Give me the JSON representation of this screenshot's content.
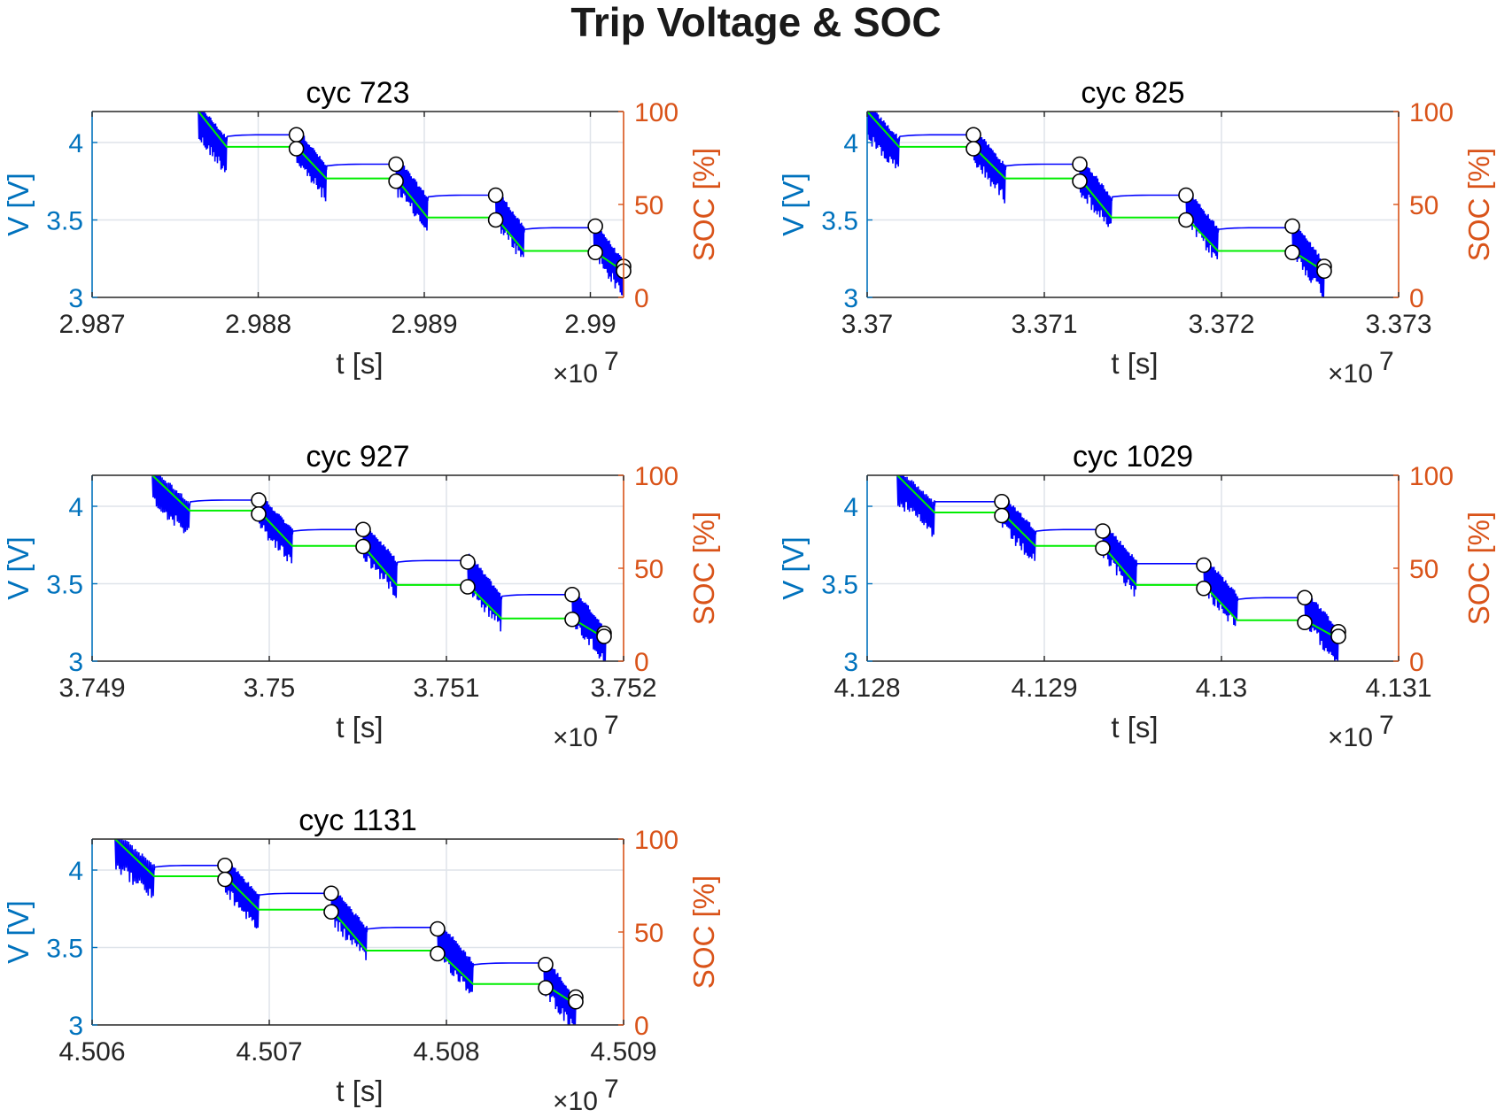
{
  "figure": {
    "title": "Trip Voltage & SOC"
  },
  "colors": {
    "voltage_axis": "#0072BD",
    "soc_axis": "#D95319",
    "voltage_trace": "#0000ff",
    "soc_trace": "#00ee00",
    "grid": "#dfe4ea",
    "marker_fill": "#ffffff",
    "marker_edge": "#000000"
  },
  "chart_data": [
    {
      "type": "line",
      "title": "cyc 723",
      "xlabel": "t [s]",
      "x_exponent": "×10",
      "x_exponent_power": "7",
      "ylabel_left": "V  [V]",
      "ylabel_right": "SOC  [%]",
      "xlim": [
        2.987,
        2.9902
      ],
      "ylim_left": [
        3,
        4.2
      ],
      "ylim_right": [
        0,
        100
      ],
      "xticks": [
        2.987,
        2.988,
        2.989,
        2.99
      ],
      "xtick_labels": [
        "2.987",
        "2.988",
        "2.989",
        "2.99"
      ],
      "yticks_left": [
        3,
        3.5,
        4
      ],
      "ytick_labels_left": [
        "3",
        "3.5",
        "4"
      ],
      "yticks_right": [
        0,
        50,
        100
      ],
      "ytick_labels_right": [
        "0",
        "50",
        "100"
      ],
      "grid": true,
      "series": [
        {
          "axis": "left",
          "x": [
            2.98764,
            2.98781,
            2.98782,
            2.98823,
            2.98841,
            2.98842,
            2.98883,
            2.98902,
            2.98903,
            2.98943,
            2.9896,
            2.98961,
            2.99002,
            2.9902
          ],
          "y": [
            4.2,
            3.98,
            4.04,
            4.05,
            3.8,
            3.85,
            3.86,
            3.6,
            3.65,
            3.66,
            3.4,
            3.44,
            3.45,
            3.18
          ]
        },
        {
          "axis": "right",
          "x": [
            2.98764,
            2.98781,
            2.98823,
            2.98841,
            2.98883,
            2.98902,
            2.98943,
            2.9896,
            2.99002,
            2.9902
          ],
          "y": [
            100,
            81,
            81,
            64,
            64,
            43,
            43,
            25,
            25,
            14
          ]
        }
      ],
      "markers": {
        "x": [
          2.98823,
          2.98823,
          2.98883,
          2.98883,
          2.98943,
          2.98943,
          2.99003,
          2.99003,
          2.9902,
          2.9902
        ],
        "v": [
          4.05,
          3.96,
          3.86,
          3.75,
          3.66,
          3.5,
          3.46,
          3.29,
          3.2,
          3.17
        ]
      }
    },
    {
      "type": "line",
      "title": "cyc 825",
      "xlabel": "t [s]",
      "x_exponent": "×10",
      "x_exponent_power": "7",
      "ylabel_left": "V  [V]",
      "ylabel_right": "SOC  [%]",
      "xlim": [
        3.37,
        3.373
      ],
      "ylim_left": [
        3,
        4.2
      ],
      "ylim_right": [
        0,
        100
      ],
      "xticks": [
        3.37,
        3.371,
        3.372,
        3.373
      ],
      "xtick_labels": [
        "3.37",
        "3.371",
        "3.372",
        "3.373"
      ],
      "yticks_left": [
        3,
        3.5,
        4
      ],
      "ytick_labels_left": [
        "3",
        "3.5",
        "4"
      ],
      "yticks_right": [
        0,
        50,
        100
      ],
      "ytick_labels_right": [
        "0",
        "50",
        "100"
      ],
      "grid": true,
      "series": [
        {
          "axis": "left",
          "x": [
            3.37,
            3.37018,
            3.37019,
            3.3706,
            3.37078,
            3.37079,
            3.3712,
            3.37138,
            3.37139,
            3.3718,
            3.37198,
            3.37199,
            3.3724,
            3.37258
          ],
          "y": [
            4.2,
            3.98,
            4.04,
            4.05,
            3.8,
            3.85,
            3.86,
            3.6,
            3.65,
            3.66,
            3.4,
            3.44,
            3.45,
            3.18
          ]
        },
        {
          "axis": "right",
          "x": [
            3.37,
            3.37018,
            3.3706,
            3.37078,
            3.3712,
            3.37138,
            3.3718,
            3.37198,
            3.3724,
            3.37258
          ],
          "y": [
            100,
            81,
            81,
            64,
            64,
            43,
            43,
            25,
            25,
            14
          ]
        }
      ],
      "markers": {
        "x": [
          3.3706,
          3.3706,
          3.3712,
          3.3712,
          3.3718,
          3.3718,
          3.3724,
          3.3724,
          3.37258,
          3.37258
        ],
        "v": [
          4.05,
          3.96,
          3.86,
          3.75,
          3.66,
          3.5,
          3.46,
          3.29,
          3.2,
          3.17
        ]
      }
    },
    {
      "type": "line",
      "title": "cyc 927",
      "xlabel": "t [s]",
      "x_exponent": "×10",
      "x_exponent_power": "7",
      "ylabel_left": "V  [V]",
      "ylabel_right": "SOC  [%]",
      "xlim": [
        3.749,
        3.752
      ],
      "ylim_left": [
        3,
        4.2
      ],
      "ylim_right": [
        0,
        100
      ],
      "xticks": [
        3.749,
        3.75,
        3.751,
        3.752
      ],
      "xtick_labels": [
        "3.749",
        "3.75",
        "3.751",
        "3.752"
      ],
      "yticks_left": [
        3,
        3.5,
        4
      ],
      "ytick_labels_left": [
        "3",
        "3.5",
        "4"
      ],
      "yticks_right": [
        0,
        50,
        100
      ],
      "ytick_labels_right": [
        "0",
        "50",
        "100"
      ],
      "grid": true,
      "series": [
        {
          "axis": "left",
          "x": [
            3.74934,
            3.74955,
            3.74956,
            3.74994,
            3.75013,
            3.75014,
            3.75053,
            3.75072,
            3.75073,
            3.75112,
            3.75131,
            3.75132,
            3.75171,
            3.7519
          ],
          "y": [
            4.2,
            3.98,
            4.03,
            4.04,
            3.8,
            3.84,
            3.85,
            3.6,
            3.64,
            3.65,
            3.38,
            3.42,
            3.43,
            3.16
          ]
        },
        {
          "axis": "right",
          "x": [
            3.74934,
            3.74955,
            3.74994,
            3.75013,
            3.75053,
            3.75072,
            3.75112,
            3.75131,
            3.75171,
            3.7519
          ],
          "y": [
            100,
            81,
            81,
            62,
            62,
            41,
            41,
            23,
            23,
            12
          ]
        }
      ],
      "markers": {
        "x": [
          3.74994,
          3.74994,
          3.75053,
          3.75053,
          3.75112,
          3.75112,
          3.75171,
          3.75171,
          3.75189,
          3.75189
        ],
        "v": [
          4.04,
          3.95,
          3.85,
          3.74,
          3.64,
          3.48,
          3.43,
          3.27,
          3.18,
          3.16
        ]
      }
    },
    {
      "type": "line",
      "title": "cyc 1029",
      "xlabel": "t [s]",
      "x_exponent": "×10",
      "x_exponent_power": "7",
      "ylabel_left": "V  [V]",
      "ylabel_right": "SOC  [%]",
      "xlim": [
        4.128,
        4.131
      ],
      "ylim_left": [
        3,
        4.2
      ],
      "ylim_right": [
        0,
        100
      ],
      "xticks": [
        4.128,
        4.129,
        4.13,
        4.131
      ],
      "xtick_labels": [
        "4.128",
        "4.129",
        "4.13",
        "4.131"
      ],
      "yticks_left": [
        3,
        3.5,
        4
      ],
      "ytick_labels_left": [
        "3",
        "3.5",
        "4"
      ],
      "yticks_right": [
        0,
        50,
        100
      ],
      "ytick_labels_right": [
        "0",
        "50",
        "100"
      ],
      "grid": true,
      "series": [
        {
          "axis": "left",
          "x": [
            4.12817,
            4.12838,
            4.12839,
            4.12876,
            4.12895,
            4.12896,
            4.12933,
            4.12952,
            4.12953,
            4.1299,
            4.13009,
            4.1301,
            4.13047,
            4.13066
          ],
          "y": [
            4.2,
            3.98,
            4.03,
            4.03,
            3.8,
            3.84,
            3.85,
            3.6,
            3.63,
            3.63,
            3.38,
            3.4,
            3.41,
            3.16
          ]
        },
        {
          "axis": "right",
          "x": [
            4.12817,
            4.12838,
            4.12876,
            4.12895,
            4.12933,
            4.12952,
            4.1299,
            4.13009,
            4.13047,
            4.13066
          ],
          "y": [
            100,
            80,
            80,
            62,
            62,
            41,
            41,
            22,
            22,
            12
          ]
        }
      ],
      "markers": {
        "x": [
          4.12876,
          4.12876,
          4.12933,
          4.12933,
          4.1299,
          4.1299,
          4.13047,
          4.13047,
          4.13066,
          4.13066
        ],
        "v": [
          4.03,
          3.94,
          3.84,
          3.73,
          3.62,
          3.47,
          3.41,
          3.25,
          3.19,
          3.16
        ]
      }
    },
    {
      "type": "line",
      "title": "cyc 1131",
      "xlabel": "t [s]",
      "x_exponent": "×10",
      "x_exponent_power": "7",
      "ylabel_left": "V  [V]",
      "ylabel_right": "SOC  [%]",
      "xlim": [
        4.506,
        4.509
      ],
      "ylim_left": [
        3,
        4.2
      ],
      "ylim_right": [
        0,
        100
      ],
      "xticks": [
        4.506,
        4.507,
        4.508,
        4.509
      ],
      "xtick_labels": [
        "4.506",
        "4.507",
        "4.508",
        "4.509"
      ],
      "yticks_left": [
        3,
        3.5,
        4
      ],
      "ytick_labels_left": [
        "3",
        "3.5",
        "4"
      ],
      "yticks_right": [
        0,
        50,
        100
      ],
      "ytick_labels_right": [
        "0",
        "50",
        "100"
      ],
      "grid": true,
      "series": [
        {
          "axis": "left",
          "x": [
            4.50613,
            4.50635,
            4.50636,
            4.50675,
            4.50694,
            4.50695,
            4.50735,
            4.50755,
            4.50756,
            4.50795,
            4.50815,
            4.50816,
            4.50855,
            4.50873
          ],
          "y": [
            4.2,
            3.98,
            4.02,
            4.03,
            3.79,
            3.84,
            3.85,
            3.58,
            3.62,
            3.63,
            3.36,
            3.39,
            3.4,
            3.12
          ]
        },
        {
          "axis": "right",
          "x": [
            4.50613,
            4.50635,
            4.50675,
            4.50694,
            4.50735,
            4.50755,
            4.50795,
            4.50815,
            4.50855,
            4.50873
          ],
          "y": [
            100,
            80,
            80,
            62,
            62,
            40,
            40,
            22,
            22,
            11
          ]
        }
      ],
      "markers": {
        "x": [
          4.50675,
          4.50675,
          4.50735,
          4.50735,
          4.50795,
          4.50795,
          4.50856,
          4.50856,
          4.50873,
          4.50873
        ],
        "v": [
          4.03,
          3.94,
          3.85,
          3.73,
          3.62,
          3.46,
          3.39,
          3.24,
          3.18,
          3.15
        ]
      }
    }
  ]
}
